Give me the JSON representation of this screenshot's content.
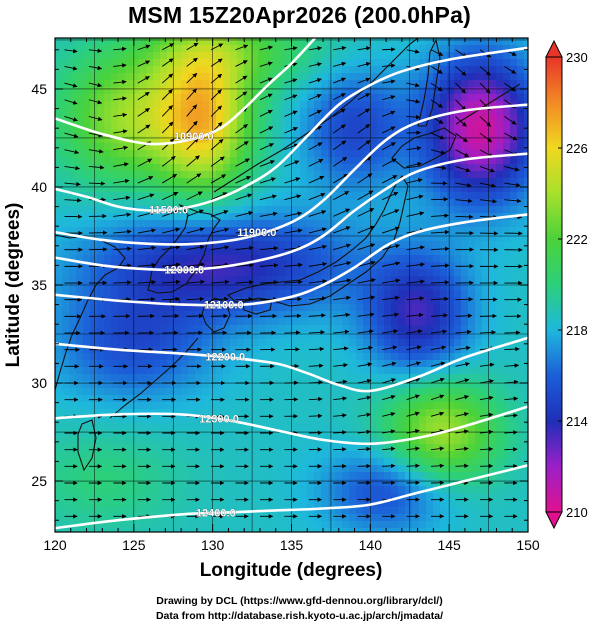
{
  "title": "MSM 15Z20Apr2026 (200.0hPa)",
  "credit": {
    "line1": "Drawing by DCL (https://www.gfd-dennou.org/library/dcl/)",
    "line2": "Data from http://database.rish.kyoto-u.ac.jp/arch/jmadata/"
  },
  "map": {
    "xlabel": "Longitude (degrees)",
    "ylabel": "Latitude  (degrees)",
    "xlim": [
      120,
      150
    ],
    "ylim": [
      22.4,
      47.6
    ],
    "xticks": [
      120,
      125,
      130,
      135,
      140,
      145,
      150
    ],
    "yticks": [
      25,
      30,
      35,
      40,
      45
    ],
    "shaded_field": "temperature (K)",
    "contour_field": "geopotential height (m)",
    "vector_field": "wind",
    "contours": [
      {
        "label": "10900.0",
        "value": 10900,
        "points": [
          [
            120,
            43.5
          ],
          [
            123,
            42.7
          ],
          [
            126,
            42.2
          ],
          [
            128.5,
            42.4
          ],
          [
            130.5,
            43.0
          ],
          [
            132,
            44.0
          ],
          [
            133.5,
            45.2
          ],
          [
            135,
            46.3
          ],
          [
            136.5,
            47.6
          ]
        ]
      },
      {
        "label": "11500.0",
        "value": 11500,
        "points": [
          [
            120,
            39.9
          ],
          [
            122,
            39.5
          ],
          [
            124,
            39.0
          ],
          [
            126,
            38.8
          ],
          [
            128,
            38.9
          ],
          [
            130,
            39.3
          ],
          [
            132,
            40.0
          ],
          [
            134,
            41.0
          ],
          [
            136,
            42.6
          ],
          [
            138,
            44.2
          ],
          [
            140,
            45.2
          ],
          [
            142,
            45.9
          ],
          [
            145,
            46.5
          ],
          [
            150,
            47.1
          ]
        ]
      },
      {
        "label": "11900.0",
        "value": 11900,
        "points": [
          [
            120,
            37.7
          ],
          [
            123,
            37.3
          ],
          [
            126,
            37.1
          ],
          [
            129,
            37.1
          ],
          [
            132,
            37.4
          ],
          [
            135,
            38.2
          ],
          [
            137,
            39.3
          ],
          [
            139,
            40.9
          ],
          [
            141,
            42.4
          ],
          [
            143,
            43.3
          ],
          [
            146,
            43.9
          ],
          [
            150,
            44.2
          ]
        ]
      },
      {
        "label": "12000.0",
        "value": 12000,
        "points": [
          [
            120,
            36.4
          ],
          [
            123,
            36.0
          ],
          [
            126,
            35.8
          ],
          [
            129,
            35.8
          ],
          [
            132,
            36.1
          ],
          [
            135,
            36.7
          ],
          [
            137,
            37.5
          ],
          [
            139,
            38.8
          ],
          [
            141,
            39.9
          ],
          [
            143,
            40.8
          ],
          [
            146,
            41.4
          ],
          [
            150,
            41.7
          ]
        ]
      },
      {
        "label": "12100.0",
        "value": 12100,
        "points": [
          [
            120,
            34.5
          ],
          [
            124,
            34.2
          ],
          [
            128,
            34.0
          ],
          [
            132,
            34.0
          ],
          [
            135,
            34.4
          ],
          [
            137,
            35.0
          ],
          [
            139,
            35.9
          ],
          [
            141,
            37.0
          ],
          [
            143,
            37.7
          ],
          [
            146,
            38.2
          ],
          [
            150,
            38.6
          ]
        ]
      },
      {
        "label": "12200.0",
        "value": 12200,
        "points": [
          [
            120,
            32.0
          ],
          [
            124,
            31.7
          ],
          [
            128,
            31.5
          ],
          [
            131,
            31.3
          ],
          [
            134,
            31.0
          ],
          [
            136,
            30.5
          ],
          [
            138,
            29.9
          ],
          [
            140,
            29.6
          ],
          [
            143,
            30.3
          ],
          [
            146,
            31.3
          ],
          [
            150,
            32.3
          ]
        ]
      },
      {
        "label": "12300.0",
        "value": 12300,
        "points": [
          [
            120,
            28.2
          ],
          [
            124,
            28.4
          ],
          [
            128,
            28.4
          ],
          [
            131,
            28.1
          ],
          [
            134,
            27.6
          ],
          [
            137,
            27.1
          ],
          [
            140,
            26.9
          ],
          [
            143,
            27.2
          ],
          [
            146,
            27.8
          ],
          [
            150,
            28.8
          ]
        ]
      },
      {
        "label": "12400.0",
        "value": 12400,
        "points": [
          [
            120,
            22.6
          ],
          [
            124,
            23.0
          ],
          [
            128,
            23.3
          ],
          [
            131,
            23.4
          ],
          [
            134,
            23.5
          ],
          [
            137,
            23.6
          ],
          [
            140,
            23.8
          ],
          [
            143,
            24.4
          ],
          [
            146,
            25.0
          ],
          [
            150,
            25.8
          ]
        ]
      }
    ]
  },
  "colorbar": {
    "min": 210,
    "max": 230,
    "tick_values": [
      210,
      214,
      218,
      222,
      226,
      230
    ],
    "tick_labels": [
      "210",
      "214",
      "218",
      "222",
      "226",
      "230"
    ],
    "stops": [
      {
        "value": 210,
        "color": "#e0118f"
      },
      {
        "value": 212,
        "color": "#9a20c8"
      },
      {
        "value": 214,
        "color": "#1f2fb8"
      },
      {
        "value": 216,
        "color": "#1c5ed8"
      },
      {
        "value": 218,
        "color": "#1eb8dc"
      },
      {
        "value": 220,
        "color": "#2cd07a"
      },
      {
        "value": 222,
        "color": "#4bd23a"
      },
      {
        "value": 224,
        "color": "#a6e02c"
      },
      {
        "value": 226,
        "color": "#f0d820"
      },
      {
        "value": 228,
        "color": "#f28a25"
      },
      {
        "value": 230,
        "color": "#e8352a"
      }
    ]
  }
}
